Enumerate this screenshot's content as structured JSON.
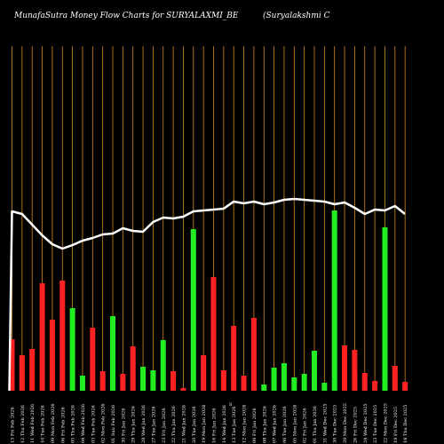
{
  "header": {
    "title_left": "MunafaSutra  Money Flow  Charts for SURYALAXMI_BE",
    "title_right": "(Suryalakshmi   C"
  },
  "colors": {
    "background": "#000000",
    "gridline": "#d08a1e",
    "inflow": "#22ee22",
    "outflow": "#ff2222",
    "line": "#ffffff",
    "text": "#ffffff"
  },
  "chart_data": {
    "type": "bar",
    "bars": [
      {
        "label": "13 Fri Feb 2026",
        "value": 58,
        "flow": "outflow"
      },
      {
        "label": "12 Thu Feb 2026",
        "value": 40,
        "flow": "outflow"
      },
      {
        "label": "11 Wed Feb 2026",
        "value": 47,
        "flow": "outflow"
      },
      {
        "label": "10 Tue Feb 2026",
        "value": 121,
        "flow": "outflow"
      },
      {
        "label": "09 Mon Feb 2026",
        "value": 80,
        "flow": "outflow"
      },
      {
        "label": "06 Fri Feb 2026",
        "value": 124,
        "flow": "outflow"
      },
      {
        "label": "05 Thu Feb 2026",
        "value": 93,
        "flow": "inflow"
      },
      {
        "label": "04 Wed Feb 2026",
        "value": 17,
        "flow": "inflow"
      },
      {
        "label": "03 Tue Feb 2026",
        "value": 71,
        "flow": "outflow"
      },
      {
        "label": "02 Mon Feb 2026",
        "value": 22,
        "flow": "outflow"
      },
      {
        "label": "01 Sun Feb 2026",
        "value": 84,
        "flow": "inflow"
      },
      {
        "label": "30 Fri Jan 2026",
        "value": 19,
        "flow": "outflow"
      },
      {
        "label": "29 Thu Jan 2026",
        "value": 50,
        "flow": "outflow"
      },
      {
        "label": "28 Wed Jan 2026",
        "value": 27,
        "flow": "inflow"
      },
      {
        "label": "27 Tue Jan 2026",
        "value": 23,
        "flow": "inflow"
      },
      {
        "label": "23 Fri Jan 2026",
        "value": 57,
        "flow": "inflow"
      },
      {
        "label": "22 Thu Jan 2026",
        "value": 22,
        "flow": "outflow"
      },
      {
        "label": "21 Wed Jan 2026",
        "value": 3,
        "flow": "outflow"
      },
      {
        "label": "20 Tue Jan 2026",
        "value": 182,
        "flow": "inflow"
      },
      {
        "label": "19 Mon Jan 2026",
        "value": 40,
        "flow": "outflow"
      },
      {
        "label": "16 Fri Jan 2026",
        "value": 128,
        "flow": "outflow"
      },
      {
        "label": "14 Wed Jan 2026",
        "value": 23,
        "flow": "outflow"
      },
      {
        "label": "13 Tue Jan 2026",
        "value": 73,
        "flow": "outflow"
      },
      {
        "label": "12 Mon Jan 2026",
        "value": 17,
        "flow": "outflow"
      },
      {
        "label": "09 Fri Jan 2026",
        "value": 82,
        "flow": "outflow"
      },
      {
        "label": "08 Thu Jan 2026",
        "value": 7,
        "flow": "inflow"
      },
      {
        "label": "07 Wed Jan 2026",
        "value": 26,
        "flow": "inflow"
      },
      {
        "label": "06 Tue Jan 2026",
        "value": 31,
        "flow": "inflow"
      },
      {
        "label": "05 Mon Jan 2026",
        "value": 15,
        "flow": "inflow"
      },
      {
        "label": "02 Fri Jan 2026",
        "value": 19,
        "flow": "inflow"
      },
      {
        "label": "01 Thu Jan 2026",
        "value": 45,
        "flow": "inflow"
      },
      {
        "label": "31 Wed Dec 2025",
        "value": 9,
        "flow": "inflow"
      },
      {
        "label": "30 Tue Dec 2025",
        "value": 203,
        "flow": "inflow"
      },
      {
        "label": "29 Mon Dec 2025",
        "value": 51,
        "flow": "outflow"
      },
      {
        "label": "26 Fri Dec 2025",
        "value": 46,
        "flow": "outflow"
      },
      {
        "label": "24 Wed Dec 2025",
        "value": 20,
        "flow": "outflow"
      },
      {
        "label": "23 Tue Dec 2025",
        "value": 11,
        "flow": "outflow"
      },
      {
        "label": "22 Mon Dec 2025",
        "value": 184,
        "flow": "inflow"
      },
      {
        "label": "19 Fri Dec 2025",
        "value": 28,
        "flow": "outflow"
      },
      {
        "label": "18 Thu Dec 2025",
        "value": 10,
        "flow": "outflow"
      }
    ],
    "price_line": [
      202,
      199,
      187,
      175,
      165,
      160,
      164,
      169,
      172,
      176,
      177,
      183,
      180,
      179,
      190,
      195,
      194,
      196,
      202,
      203,
      204,
      205,
      213,
      211,
      213,
      210,
      212,
      215,
      216,
      215,
      214,
      213,
      210,
      212,
      206,
      199,
      204,
      203,
      208,
      199
    ],
    "x_axis_marker": "S"
  }
}
